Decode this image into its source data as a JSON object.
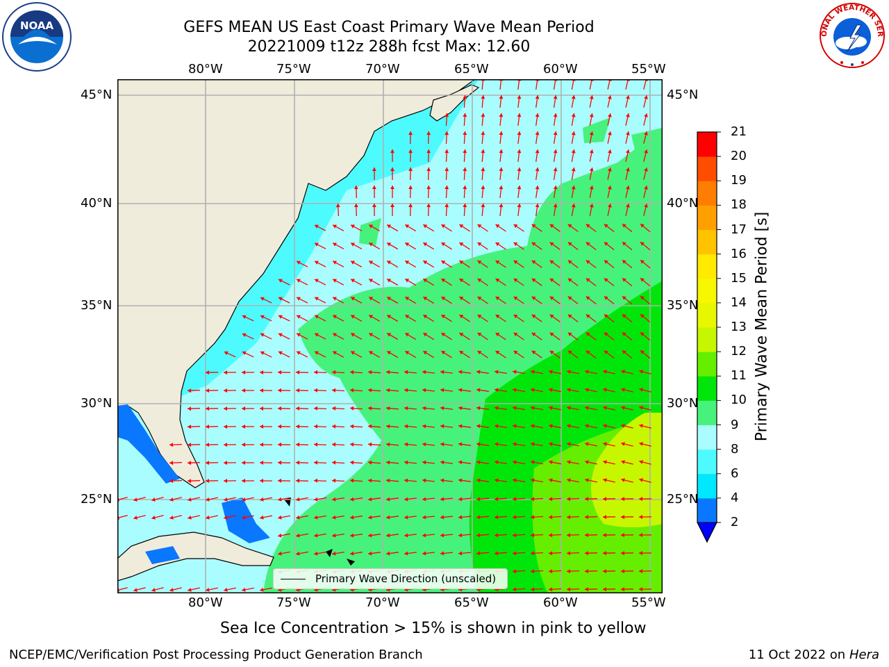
{
  "header": {
    "title_line1": "GEFS MEAN US East Coast Primary Wave Mean Period",
    "title_line2": "20221009 t12z 288h fcst   Max: 12.60"
  },
  "logos": {
    "noaa_text": "NOAA",
    "nws_text": "NATIONAL WEATHER SERVICE"
  },
  "map": {
    "lon_labels": [
      "80°W",
      "75°W",
      "70°W",
      "65°W",
      "60°W",
      "55°W"
    ],
    "lat_labels": [
      "45°N",
      "40°N",
      "35°N",
      "30°N",
      "25°N"
    ],
    "legend_label": "Primary Wave Direction (unscaled)",
    "caption": "Sea Ice Concentration > 15% is shown in pink to yellow"
  },
  "colorbar": {
    "label": "Primary Wave Mean Period [s]",
    "ticks": [
      "2",
      "4",
      "6",
      "8",
      "9",
      "10",
      "11",
      "12",
      "13",
      "14",
      "15",
      "16",
      "17",
      "18",
      "19",
      "20",
      "21"
    ],
    "colors": [
      "#0a77ff",
      "#00e8ff",
      "#4dfbff",
      "#aafdff",
      "#47f27c",
      "#00e60b",
      "#66ee00",
      "#c6f700",
      "#e6f700",
      "#f6f700",
      "#ffea00",
      "#ffc300",
      "#ffa000",
      "#ff7d00",
      "#ff4d00",
      "#ff0000"
    ],
    "extend_color": "#0000ff"
  },
  "footer": {
    "left": "NCEP/EMC/Verification Post Processing Product Generation Branch",
    "right_date": "11 Oct 2022 on",
    "right_host": "Hera"
  }
}
